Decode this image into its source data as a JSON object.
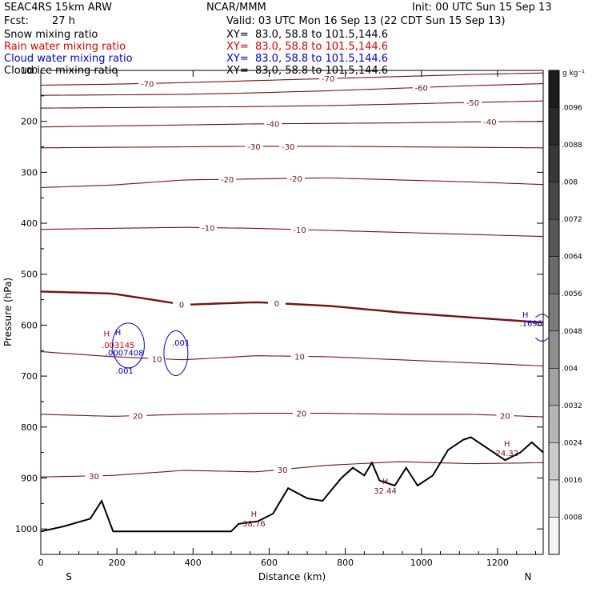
{
  "header": {
    "model": "SEAC4RS 15km ARW",
    "org": "NCAR/MMM",
    "init": "Init: 00 UTC Sun 15 Sep 13",
    "fcst_label": "Fcst:",
    "fcst_value": "27 h",
    "valid": "Valid: 03 UTC Mon 16 Sep 13 (22 CDT Sun 15 Sep 13)"
  },
  "field_lines": [
    {
      "name": "Snow mixing ratio",
      "xy": "XY=  83.0, 58.8 to 101.5,144.6",
      "color": "#000000"
    },
    {
      "name": "Rain water mixing ratio",
      "xy": "XY=  83.0, 58.8 to 101.5,144.6",
      "color": "#e00000"
    },
    {
      "name": "Cloud water mixing ratio",
      "xy": "XY=  83.0, 58.8 to 101.5,144.6",
      "color": "#0000d0"
    },
    {
      "name": "Cloud ice mixing ratio",
      "xy": "XY=  83.0, 58.8 to 101.5,144.6",
      "color": "#000000"
    }
  ],
  "chart_data": {
    "type": "cross-section",
    "xlabel": "Distance (km)",
    "ylabel": "Pressure (hPa)",
    "xlim": [
      0,
      1320
    ],
    "ylim": [
      1050,
      100
    ],
    "x_ticks": [
      0,
      200,
      400,
      600,
      800,
      1000,
      1200
    ],
    "y_ticks": [
      100,
      200,
      300,
      400,
      500,
      600,
      700,
      800,
      900,
      1000
    ],
    "end_labels": {
      "left": "S",
      "right": "N"
    },
    "temperature_contours": [
      {
        "value": -70,
        "p": [
          129,
          127,
          124,
          120,
          116,
          112,
          108,
          105
        ],
        "labels": [
          {
            "text": "-70",
            "x": 280
          },
          {
            "text": "-70",
            "x": 755
          }
        ]
      },
      {
        "value": -60,
        "p": [
          149,
          148,
          147,
          144,
          140,
          135,
          130,
          126
        ],
        "labels": [
          {
            "text": "-60",
            "x": 1000
          }
        ]
      },
      {
        "value": -50,
        "p": [
          174,
          173,
          172,
          171,
          169,
          166,
          163,
          160
        ],
        "labels": [
          {
            "text": "-50",
            "x": 1135
          }
        ]
      },
      {
        "value": -40,
        "p": [
          211,
          209,
          207,
          205,
          204,
          203,
          201,
          200
        ],
        "labels": [
          {
            "text": "-40",
            "x": 610
          },
          {
            "text": "-40",
            "x": 1180
          }
        ]
      },
      {
        "value": -30,
        "p": [
          252,
          251,
          250,
          249,
          249,
          250,
          251,
          252
        ],
        "labels": [
          {
            "text": "-30",
            "x": 560
          },
          {
            "text": "-30",
            "x": 650
          }
        ]
      },
      {
        "value": -20,
        "p": [
          330,
          325,
          315,
          313,
          311,
          315,
          319,
          324
        ],
        "labels": [
          {
            "text": "-20",
            "x": 490
          },
          {
            "text": "-20",
            "x": 670
          }
        ]
      },
      {
        "value": -10,
        "p": [
          412,
          410,
          408,
          410,
          414,
          418,
          422,
          426
        ],
        "labels": [
          {
            "text": "-10",
            "x": 440
          },
          {
            "text": "-10",
            "x": 680
          }
        ]
      },
      {
        "value": 0,
        "p": [
          534,
          538,
          560,
          555,
          562,
          575,
          585,
          595
        ],
        "labels": [
          {
            "text": "0",
            "x": 370
          },
          {
            "text": "0",
            "x": 620
          }
        ]
      },
      {
        "value": 10,
        "p": [
          652,
          662,
          668,
          660,
          662,
          668,
          674,
          680
        ],
        "labels": [
          {
            "text": "10",
            "x": 305
          },
          {
            "text": "10",
            "x": 680
          }
        ]
      },
      {
        "value": 20,
        "p": [
          775,
          779,
          775,
          773,
          773,
          775,
          775,
          780
        ],
        "labels": [
          {
            "text": "20",
            "x": 255
          },
          {
            "text": "20",
            "x": 685
          },
          {
            "text": "20",
            "x": 1220
          }
        ]
      },
      {
        "value": 30,
        "p": [
          898,
          895,
          885,
          888,
          875,
          868,
          872,
          870
        ],
        "labels": [
          {
            "text": "30",
            "x": 140
          },
          {
            "text": "30",
            "x": 635
          }
        ]
      }
    ],
    "terrain_p": [
      [
        0,
        1005
      ],
      [
        60,
        995
      ],
      [
        130,
        980
      ],
      [
        160,
        945
      ],
      [
        190,
        1005
      ],
      [
        300,
        1005
      ],
      [
        500,
        1005
      ],
      [
        520,
        990
      ],
      [
        570,
        985
      ],
      [
        610,
        970
      ],
      [
        650,
        920
      ],
      [
        700,
        940
      ],
      [
        740,
        945
      ],
      [
        790,
        900
      ],
      [
        820,
        880
      ],
      [
        850,
        895
      ],
      [
        870,
        870
      ],
      [
        890,
        905
      ],
      [
        930,
        915
      ],
      [
        960,
        880
      ],
      [
        990,
        915
      ],
      [
        1030,
        895
      ],
      [
        1070,
        845
      ],
      [
        1110,
        825
      ],
      [
        1130,
        820
      ],
      [
        1180,
        845
      ],
      [
        1220,
        865
      ],
      [
        1260,
        850
      ],
      [
        1290,
        830
      ],
      [
        1320,
        850
      ]
    ],
    "max_markers": [
      {
        "text": "H",
        "value": "38.76",
        "x": 560,
        "p": 976
      },
      {
        "text": "H",
        "value": "32.44",
        "x": 905,
        "p": 912
      },
      {
        "text": "H",
        "value": "24.32",
        "x": 1225,
        "p": 838
      }
    ],
    "cloud_water": {
      "max_label": "H",
      "value": ".0007408",
      "x": 250,
      "p": 640,
      "contour_label": ".001",
      "contour_label2": ".001",
      "right_max_label": "H",
      "right_value": ".1696",
      "color": "#0000d0"
    },
    "rain_water": {
      "max_label": "H",
      "value": ".003145",
      "color": "#e00000"
    },
    "colorbar": {
      "unit": "g kg⁻¹",
      "ticks": [
        ".0096",
        ".0088",
        ".008",
        ".0072",
        ".0064",
        ".0056",
        ".0048",
        ".004",
        ".0032",
        ".0024",
        ".0016",
        ".0008"
      ],
      "colors": [
        "#1c1c1c",
        "#2a2a2a",
        "#383838",
        "#484848",
        "#585858",
        "#6a6a6a",
        "#7c7c7c",
        "#8e8e8e",
        "#a2a2a2",
        "#b6b6b6",
        "#cacaca",
        "#dedede",
        "#f4f4f4"
      ]
    }
  }
}
